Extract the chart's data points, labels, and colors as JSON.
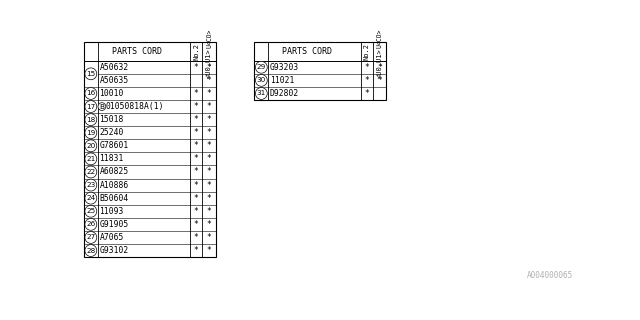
{
  "left_table": {
    "rows": [
      {
        "num": "15",
        "part": "A50632",
        "c1": "*",
        "c2": "*",
        "span_start": true
      },
      {
        "num": "15",
        "part": "A50635",
        "c1": "",
        "c2": "*",
        "span_end": true
      },
      {
        "num": "16",
        "part": "10010",
        "c1": "*",
        "c2": "*"
      },
      {
        "num": "17",
        "part": "B01050818A(1)",
        "c1": "*",
        "c2": "*",
        "circle_b": true
      },
      {
        "num": "18",
        "part": "15018",
        "c1": "*",
        "c2": "*"
      },
      {
        "num": "19",
        "part": "25240",
        "c1": "*",
        "c2": "*"
      },
      {
        "num": "20",
        "part": "G78601",
        "c1": "*",
        "c2": "*"
      },
      {
        "num": "21",
        "part": "11831",
        "c1": "*",
        "c2": "*"
      },
      {
        "num": "22",
        "part": "A60825",
        "c1": "*",
        "c2": "*"
      },
      {
        "num": "23",
        "part": "A10886",
        "c1": "*",
        "c2": "*"
      },
      {
        "num": "24",
        "part": "B50604",
        "c1": "*",
        "c2": "*"
      },
      {
        "num": "25",
        "part": "11093",
        "c1": "*",
        "c2": "*"
      },
      {
        "num": "26",
        "part": "G91905",
        "c1": "*",
        "c2": "*"
      },
      {
        "num": "27",
        "part": "A7065",
        "c1": "*",
        "c2": "*"
      },
      {
        "num": "28",
        "part": "G93102",
        "c1": "*",
        "c2": "*"
      }
    ]
  },
  "right_table": {
    "rows": [
      {
        "num": "29",
        "part": "G93203",
        "c1": "*",
        "c2": "*"
      },
      {
        "num": "30",
        "part": "11021",
        "c1": "*",
        "c2": "*"
      },
      {
        "num": "31",
        "part": "D92802",
        "c1": "*",
        "c2": ""
      }
    ]
  },
  "footnote": "A004000065",
  "bg_color": "#ffffff",
  "line_color": "#000000",
  "text_color": "#000000"
}
